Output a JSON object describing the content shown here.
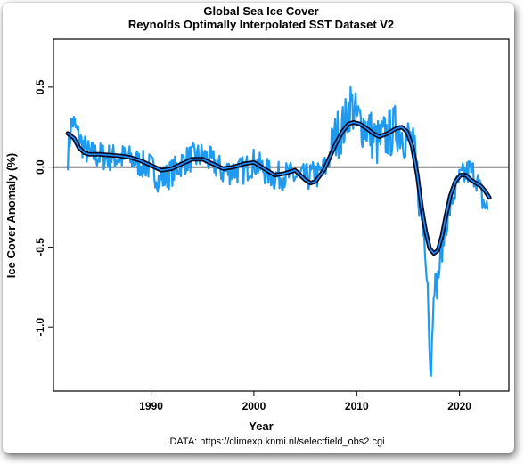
{
  "chart_data": {
    "type": "line",
    "title": "Global Sea Ice Cover",
    "subtitle": "Reynolds Optimally Interpolated SST Dataset V2",
    "xlabel": "Year",
    "ylabel": "Ice Cover Anomaly (%)",
    "source": "DATA: https://climexp.knmi.nl/selectfield_obs2.cgi",
    "xlim": [
      1980.5,
      2024.8
    ],
    "ylim": [
      -1.4,
      0.8
    ],
    "x_ticks": [
      1990,
      2000,
      2010,
      2020
    ],
    "x_tick_labels": [
      "1990",
      "2000",
      "2010",
      "2020"
    ],
    "y_ticks": [
      0.5,
      0.0,
      -0.5,
      -1.0
    ],
    "y_tick_labels": [
      "0.5",
      "0.0",
      "-0.5",
      "-1.0"
    ],
    "grid": false,
    "reference_line": 0.0,
    "colors": {
      "monthly": "#1e9bf0",
      "smooth_fill": "#1e90ff",
      "smooth_outline": "#0a0a23",
      "zero_line": "#000000"
    },
    "series": [
      {
        "style": "monthly-noisy",
        "anchors_x": [
          1981.9,
          1982.3,
          1982.6,
          1983.0,
          1983.5,
          1984.0,
          1985.0,
          1986.0,
          1987.0,
          1988.0,
          1989.0,
          1990.0,
          1990.8,
          1991.5,
          1992.3,
          1993.0,
          1994.0,
          1995.0,
          1996.0,
          1997.0,
          1998.0,
          1999.0,
          2000.0,
          2001.0,
          2002.0,
          2003.0,
          2004.0,
          2005.0,
          2005.7,
          2006.3,
          2007.0,
          2008.0,
          2008.8,
          2009.4,
          2010.0,
          2011.0,
          2012.0,
          2013.0,
          2014.0,
          2014.7,
          2015.3,
          2015.8,
          2016.2,
          2016.6,
          2016.9,
          2017.2,
          2017.5,
          2017.8,
          2018.2,
          2018.7,
          2019.3,
          2020.0,
          2020.5,
          2021.0,
          2021.6,
          2022.2,
          2022.8
        ],
        "anchors_y": [
          0.07,
          0.3,
          0.25,
          0.18,
          0.12,
          0.08,
          0.07,
          0.06,
          0.06,
          0.05,
          0.02,
          0.0,
          -0.08,
          -0.06,
          -0.02,
          0.03,
          0.06,
          0.07,
          0.03,
          -0.03,
          -0.02,
          -0.02,
          0.03,
          -0.02,
          -0.06,
          -0.05,
          -0.06,
          -0.07,
          -0.05,
          -0.05,
          0.0,
          0.2,
          0.26,
          0.4,
          0.3,
          0.25,
          0.15,
          0.2,
          0.25,
          0.2,
          0.15,
          0.0,
          -0.25,
          -0.45,
          -0.7,
          -1.38,
          -0.7,
          -0.75,
          -0.55,
          -0.35,
          -0.2,
          -0.08,
          -0.05,
          -0.02,
          -0.05,
          -0.2,
          -0.28
        ]
      },
      {
        "style": "smoothed",
        "x": [
          1981.9,
          1982.5,
          1983.0,
          1983.5,
          1984.0,
          1985.0,
          1986.0,
          1987.0,
          1988.0,
          1989.0,
          1990.0,
          1991.0,
          1992.0,
          1993.0,
          1994.0,
          1995.0,
          1996.0,
          1997.0,
          1998.0,
          1999.0,
          2000.0,
          2001.0,
          2002.0,
          2003.0,
          2004.0,
          2005.0,
          2005.5,
          2006.0,
          2006.8,
          2007.5,
          2008.0,
          2008.6,
          2009.2,
          2009.7,
          2010.3,
          2011.0,
          2011.6,
          2012.2,
          2013.0,
          2013.8,
          2014.4,
          2014.9,
          2015.4,
          2015.9,
          2016.3,
          2016.7,
          2017.1,
          2017.5,
          2017.9,
          2018.3,
          2018.7,
          2019.1,
          2019.6,
          2020.1,
          2020.6,
          2021.1,
          2021.6,
          2022.1,
          2022.5,
          2022.9
        ],
        "y": [
          0.21,
          0.18,
          0.12,
          0.09,
          0.08,
          0.08,
          0.075,
          0.07,
          0.06,
          0.04,
          0.01,
          -0.02,
          -0.01,
          0.02,
          0.05,
          0.05,
          0.02,
          -0.01,
          0.0,
          0.02,
          0.03,
          -0.01,
          -0.05,
          -0.04,
          -0.02,
          -0.08,
          -0.1,
          -0.09,
          -0.02,
          0.08,
          0.15,
          0.22,
          0.27,
          0.28,
          0.27,
          0.24,
          0.21,
          0.19,
          0.21,
          0.24,
          0.25,
          0.22,
          0.13,
          -0.05,
          -0.25,
          -0.4,
          -0.51,
          -0.54,
          -0.52,
          -0.43,
          -0.3,
          -0.18,
          -0.09,
          -0.05,
          -0.05,
          -0.08,
          -0.1,
          -0.12,
          -0.15,
          -0.19
        ]
      }
    ]
  }
}
